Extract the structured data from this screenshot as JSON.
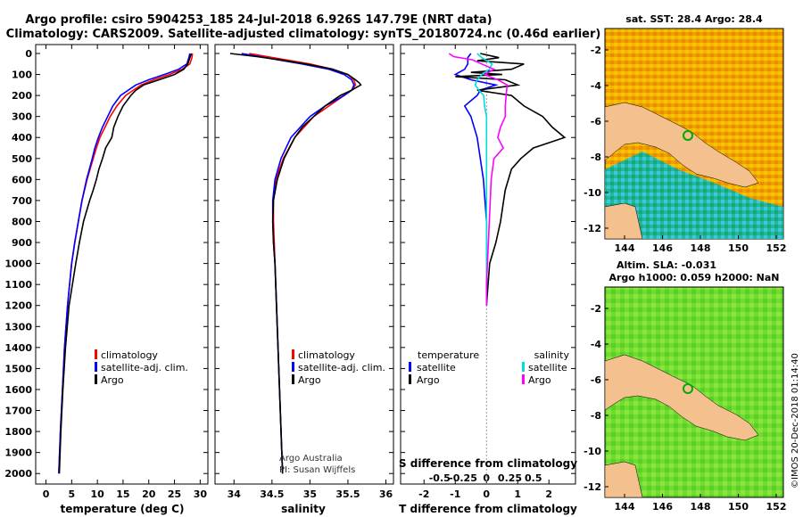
{
  "figure": {
    "title_line1": "Argo profile: csiro 5904253_185 24-Jul-2018 6.926S 147.79E (NRT data)",
    "title_line2": "Climatology: CARS2009. Satellite-adjusted climatology: synTS_20180724.nc (0.46d earlier)",
    "credit": "©IMOS 20-Dec-2018 01:14:40"
  },
  "colors": {
    "climatology": "#ff0000",
    "satellite": "#0000ff",
    "argo": "#000000",
    "sal_satellite": "#00dddd",
    "sal_argo": "#ff00ff",
    "land": "#f4c08e"
  },
  "depth_ticks": [
    "0",
    "100",
    "200",
    "300",
    "400",
    "500",
    "600",
    "700",
    "800",
    "900",
    "1000",
    "1100",
    "1200",
    "1300",
    "1400",
    "1500",
    "1600",
    "1700",
    "1800",
    "1900",
    "2000"
  ],
  "chart_data": [
    {
      "type": "line",
      "xlabel": "temperature (deg C)",
      "x_ticks": [
        "0",
        "5",
        "10",
        "15",
        "20",
        "25",
        "30"
      ],
      "xlim": [
        -2,
        31.5
      ],
      "ylim": [
        0,
        2050
      ],
      "y_inverted": true,
      "legend": [
        "climatology",
        "satellite-adj. clim.",
        "Argo"
      ],
      "series": [
        {
          "name": "climatology",
          "color": "#ff0000",
          "y": [
            0,
            20,
            50,
            75,
            100,
            125,
            150,
            200,
            250,
            300,
            350,
            400,
            450,
            500,
            600,
            700,
            800,
            900,
            1000,
            1200,
            1400,
            1600,
            1800,
            2000
          ],
          "values": [
            28.5,
            28.4,
            28.0,
            26.5,
            24.0,
            21.0,
            18.5,
            15.5,
            13.8,
            12.5,
            11.5,
            10.5,
            9.8,
            9.2,
            8.0,
            7.0,
            6.3,
            5.6,
            5.0,
            4.2,
            3.6,
            3.2,
            2.8,
            2.5
          ]
        },
        {
          "name": "satellite-adj. clim.",
          "color": "#0000ff",
          "y": [
            0,
            20,
            50,
            75,
            100,
            125,
            150,
            200,
            250,
            300,
            350,
            400,
            450,
            500,
            600,
            700,
            800,
            900,
            1000,
            1200,
            1400,
            1600,
            1800,
            2000
          ],
          "values": [
            28.0,
            27.8,
            27.4,
            25.8,
            23.0,
            20.0,
            17.5,
            14.5,
            13.0,
            12.0,
            11.0,
            10.2,
            9.5,
            9.0,
            7.9,
            7.0,
            6.3,
            5.6,
            5.0,
            4.2,
            3.6,
            3.2,
            2.8,
            2.5
          ]
        },
        {
          "name": "Argo",
          "color": "#000000",
          "y": [
            0,
            20,
            50,
            75,
            100,
            125,
            150,
            175,
            200,
            250,
            300,
            350,
            400,
            450,
            500,
            550,
            600,
            650,
            700,
            800,
            900,
            1000,
            1200,
            1400,
            1600,
            1800,
            2000
          ],
          "values": [
            28.3,
            28.0,
            27.6,
            26.8,
            25.0,
            22.0,
            19.0,
            17.5,
            16.5,
            15.0,
            14.0,
            13.2,
            12.8,
            11.6,
            11.0,
            10.3,
            9.8,
            9.2,
            8.5,
            7.3,
            6.5,
            5.8,
            4.5,
            3.8,
            3.3,
            2.9,
            2.6
          ]
        }
      ]
    },
    {
      "type": "line",
      "xlabel": "salinity",
      "x_ticks": [
        "34",
        "34.5",
        "35",
        "35.5",
        "36"
      ],
      "xlim": [
        33.75,
        36.1
      ],
      "ylim": [
        0,
        2050
      ],
      "y_inverted": true,
      "legend": [
        "climatology",
        "satellite-adj. clim.",
        "Argo"
      ],
      "annotation_line1": "Argo Australia",
      "annotation_line2": "PI: Susan Wijffels",
      "series": [
        {
          "name": "climatology",
          "color": "#ff0000",
          "y": [
            0,
            25,
            50,
            75,
            100,
            125,
            150,
            175,
            200,
            250,
            300,
            400,
            500,
            600,
            700,
            800,
            900,
            1000,
            1200,
            1400,
            1600,
            1800,
            2000
          ],
          "values": [
            34.2,
            34.6,
            35.0,
            35.3,
            35.5,
            35.58,
            35.6,
            35.55,
            35.45,
            35.25,
            35.05,
            34.8,
            34.65,
            34.55,
            34.52,
            34.52,
            34.53,
            34.54,
            34.56,
            34.58,
            34.6,
            34.62,
            34.64
          ]
        },
        {
          "name": "satellite-adj. clim.",
          "color": "#0000ff",
          "y": [
            0,
            25,
            50,
            75,
            100,
            125,
            150,
            175,
            200,
            250,
            300,
            400,
            500,
            600,
            700,
            800,
            900,
            1000,
            1200,
            1400,
            1600,
            1800,
            2000
          ],
          "values": [
            34.1,
            34.5,
            34.9,
            35.25,
            35.45,
            35.55,
            35.58,
            35.55,
            35.45,
            35.2,
            35.0,
            34.75,
            34.62,
            34.54,
            34.51,
            34.51,
            34.52,
            34.54,
            34.56,
            34.58,
            34.6,
            34.62,
            34.64
          ]
        },
        {
          "name": "Argo",
          "color": "#000000",
          "y": [
            0,
            15,
            30,
            50,
            75,
            100,
            125,
            140,
            150,
            160,
            175,
            200,
            250,
            300,
            350,
            400,
            500,
            600,
            700,
            800,
            900,
            1000,
            1200,
            1400,
            1600,
            1800,
            2000
          ],
          "values": [
            33.95,
            34.3,
            34.6,
            34.95,
            35.3,
            35.5,
            35.6,
            35.65,
            35.67,
            35.62,
            35.55,
            35.4,
            35.2,
            35.05,
            34.9,
            34.8,
            34.66,
            34.57,
            34.52,
            34.51,
            34.52,
            34.54,
            34.56,
            34.58,
            34.6,
            34.62,
            34.64
          ]
        }
      ]
    },
    {
      "type": "line",
      "xlabel": "T difference from climatology",
      "x_ticks": [
        "-2",
        "-1",
        "0",
        "1",
        "2"
      ],
      "xlim": [
        -2.75,
        2.85
      ],
      "top_axis_label": "S difference from climatology",
      "top_x_ticks": [
        "-0.5",
        "-0.25",
        "0",
        "0.25",
        "0.5"
      ],
      "ylim": [
        0,
        2050
      ],
      "y_inverted": true,
      "legend": [
        "temperature",
        "satellite",
        "Argo",
        "salinity",
        "satellite",
        "Argo"
      ],
      "series": [
        {
          "name": "satellite",
          "color": "#0000ff",
          "axis": "temperature",
          "y": [
            0,
            20,
            50,
            75,
            100,
            125,
            150,
            175,
            200,
            250,
            300,
            400,
            500,
            600,
            800,
            1000,
            1200
          ],
          "values": [
            -0.5,
            -0.6,
            -0.6,
            -0.7,
            -1.0,
            -0.5,
            0.3,
            -0.2,
            -0.3,
            -0.7,
            -0.5,
            -0.3,
            -0.2,
            -0.1,
            0.0,
            0.0,
            0.0
          ]
        },
        {
          "name": "Argo",
          "color": "#000000",
          "axis": "temperature",
          "y": [
            0,
            20,
            35,
            50,
            75,
            90,
            100,
            110,
            125,
            150,
            175,
            200,
            250,
            300,
            350,
            400,
            450,
            500,
            550,
            600,
            650,
            700,
            800,
            900,
            1000,
            1100,
            1200
          ],
          "values": [
            -0.2,
            0.4,
            -0.3,
            1.2,
            0.8,
            -0.5,
            0.5,
            -1.0,
            0.6,
            1.0,
            -0.3,
            0.8,
            1.2,
            1.8,
            2.1,
            2.5,
            1.5,
            1.1,
            0.8,
            0.7,
            0.6,
            0.55,
            0.45,
            0.3,
            0.1,
            0.05,
            0.0
          ]
        },
        {
          "name": "satellite",
          "color": "#00dddd",
          "axis": "salinity",
          "y": [
            0,
            20,
            50,
            75,
            100,
            125,
            150,
            175,
            200,
            250,
            300,
            400,
            500,
            600,
            700,
            800,
            1000,
            1200
          ],
          "values": [
            -0.1,
            -0.05,
            0.06,
            0.03,
            -0.05,
            -0.1,
            -0.12,
            -0.08,
            -0.03,
            -0.02,
            0.0,
            0.0,
            0.0,
            0.0,
            0.0,
            0.0,
            0.0,
            0.0
          ]
        },
        {
          "name": "Argo",
          "color": "#ff00ff",
          "axis": "salinity",
          "y": [
            0,
            15,
            30,
            50,
            75,
            100,
            125,
            150,
            200,
            250,
            300,
            350,
            400,
            450,
            500,
            600,
            700,
            800,
            900,
            1000,
            1100,
            1200
          ],
          "values": [
            -0.4,
            -0.35,
            -0.15,
            -0.05,
            0.08,
            -0.02,
            0.12,
            0.22,
            0.21,
            0.2,
            0.2,
            0.15,
            0.12,
            0.18,
            0.08,
            0.05,
            0.04,
            0.03,
            0.02,
            0.01,
            0.0,
            0.0
          ]
        }
      ]
    },
    {
      "type": "heatmap",
      "title": "sat. SST: 28.4 Argo: 28.4",
      "x_ticks": [
        "144",
        "146",
        "148",
        "150",
        "152"
      ],
      "y_ticks": [
        "-2",
        "-4",
        "-6",
        "-8",
        "-10",
        "-12"
      ]
    },
    {
      "type": "heatmap",
      "title_line1": "Altim. SLA: -0.031",
      "title_line2": "Argo h1000: 0.059 h2000: NaN",
      "x_ticks": [
        "144",
        "146",
        "148",
        "150",
        "152"
      ],
      "y_ticks": [
        "-2",
        "-4",
        "-6",
        "-8",
        "-10",
        "-12"
      ]
    }
  ]
}
